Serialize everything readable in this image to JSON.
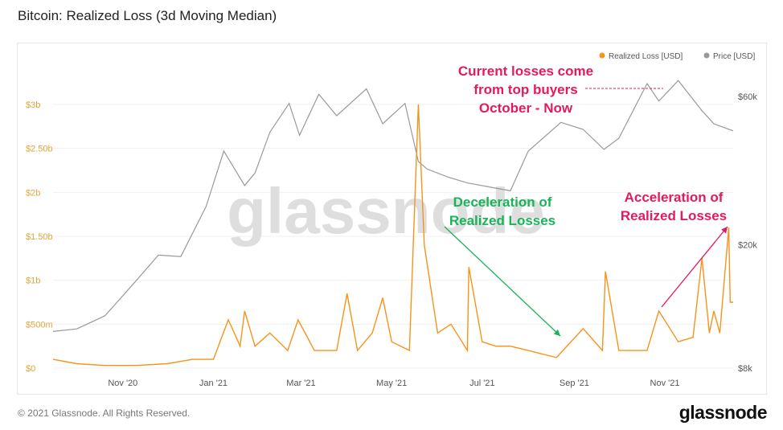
{
  "title": "Bitcoin: Realized Loss (3d Moving Median)",
  "footer": {
    "copyright": "© 2021 Glassnode. All Rights Reserved.",
    "logo": "glassnode"
  },
  "watermark": "glassnode",
  "colors": {
    "loss": "#f7931a",
    "price": "#999999",
    "annotation_red": "#e5195e",
    "annotation_green": "#19b35a"
  },
  "annotations": {
    "top": [
      "Current losses come",
      "from top buyers",
      "October - Now"
    ],
    "decel": [
      "Deceleration of",
      "Realized Losses"
    ],
    "accel": [
      "Acceleration of",
      "Realized Losses"
    ]
  },
  "chart_data": {
    "type": "line",
    "x_ticks": [
      "Nov '20",
      "Jan '21",
      "Mar '21",
      "May '21",
      "Jul '21",
      "Sep '21",
      "Nov '21"
    ],
    "y_left": {
      "ticks": [
        "$0",
        "$500m",
        "$1b",
        "$1.50b",
        "$2b",
        "$2.50b",
        "$3b"
      ],
      "ylim": [
        0,
        3000000000
      ]
    },
    "y_right": {
      "scale": "log",
      "ticks": [
        "$8k",
        "$20k",
        "$60k"
      ]
    },
    "legend": [
      "Realized Loss [USD]",
      "Price [USD]"
    ],
    "legend_position": "top-right",
    "series": [
      {
        "name": "Realized Loss [USD]",
        "axis": "left",
        "points": [
          [
            "2020-09-15",
            0.1
          ],
          [
            "2020-10-01",
            0.05
          ],
          [
            "2020-10-20",
            0.03
          ],
          [
            "2020-11-10",
            0.03
          ],
          [
            "2020-12-01",
            0.05
          ],
          [
            "2020-12-18",
            0.1
          ],
          [
            "2021-01-01",
            0.1
          ],
          [
            "2021-01-11",
            0.55
          ],
          [
            "2021-01-19",
            0.25
          ],
          [
            "2021-01-22",
            0.65
          ],
          [
            "2021-01-29",
            0.25
          ],
          [
            "2021-02-08",
            0.4
          ],
          [
            "2021-02-20",
            0.2
          ],
          [
            "2021-02-27",
            0.55
          ],
          [
            "2021-03-10",
            0.2
          ],
          [
            "2021-03-25",
            0.2
          ],
          [
            "2021-04-01",
            0.85
          ],
          [
            "2021-04-08",
            0.2
          ],
          [
            "2021-04-18",
            0.4
          ],
          [
            "2021-04-25",
            0.8
          ],
          [
            "2021-05-01",
            0.3
          ],
          [
            "2021-05-13",
            0.2
          ],
          [
            "2021-05-19",
            3.0
          ],
          [
            "2021-05-23",
            1.4
          ],
          [
            "2021-06-01",
            0.4
          ],
          [
            "2021-06-10",
            0.5
          ],
          [
            "2021-06-21",
            0.2
          ],
          [
            "2021-06-22",
            1.15
          ],
          [
            "2021-07-01",
            0.3
          ],
          [
            "2021-07-10",
            0.25
          ],
          [
            "2021-07-20",
            0.25
          ],
          [
            "2021-08-01",
            0.2
          ],
          [
            "2021-08-20",
            0.12
          ],
          [
            "2021-09-07",
            0.45
          ],
          [
            "2021-09-20",
            0.2
          ],
          [
            "2021-09-22",
            1.1
          ],
          [
            "2021-10-01",
            0.2
          ],
          [
            "2021-10-20",
            0.2
          ],
          [
            "2021-10-28",
            0.65
          ],
          [
            "2021-11-10",
            0.3
          ],
          [
            "2021-11-20",
            0.35
          ],
          [
            "2021-11-26",
            1.25
          ],
          [
            "2021-12-01",
            0.4
          ],
          [
            "2021-12-04",
            0.65
          ],
          [
            "2021-12-08",
            0.4
          ],
          [
            "2021-12-14",
            1.6
          ],
          [
            "2021-12-15",
            0.75
          ],
          [
            "2021-12-17",
            0.75
          ]
        ]
      },
      {
        "name": "Price [USD]",
        "axis": "right",
        "points": [
          [
            "2020-09-15",
            10500
          ],
          [
            "2020-10-01",
            10700
          ],
          [
            "2020-10-20",
            11800
          ],
          [
            "2020-11-10",
            15300
          ],
          [
            "2020-11-25",
            18500
          ],
          [
            "2020-12-10",
            18300
          ],
          [
            "2020-12-27",
            26500
          ],
          [
            "2021-01-08",
            40000
          ],
          [
            "2021-01-22",
            31000
          ],
          [
            "2021-01-29",
            34000
          ],
          [
            "2021-02-08",
            46000
          ],
          [
            "2021-02-21",
            57000
          ],
          [
            "2021-02-28",
            45000
          ],
          [
            "2021-03-13",
            61000
          ],
          [
            "2021-03-25",
            52000
          ],
          [
            "2021-04-14",
            63500
          ],
          [
            "2021-04-25",
            49000
          ],
          [
            "2021-05-10",
            57000
          ],
          [
            "2021-05-19",
            37000
          ],
          [
            "2021-05-25",
            35000
          ],
          [
            "2021-06-08",
            33000
          ],
          [
            "2021-06-21",
            31600
          ],
          [
            "2021-07-20",
            29800
          ],
          [
            "2021-08-01",
            40000
          ],
          [
            "2021-08-23",
            49500
          ],
          [
            "2021-09-07",
            47000
          ],
          [
            "2021-09-21",
            40500
          ],
          [
            "2021-10-01",
            44000
          ],
          [
            "2021-10-20",
            66000
          ],
          [
            "2021-10-28",
            58000
          ],
          [
            "2021-11-10",
            67500
          ],
          [
            "2021-11-26",
            54000
          ],
          [
            "2021-12-04",
            49000
          ],
          [
            "2021-12-17",
            46500
          ]
        ]
      }
    ]
  }
}
